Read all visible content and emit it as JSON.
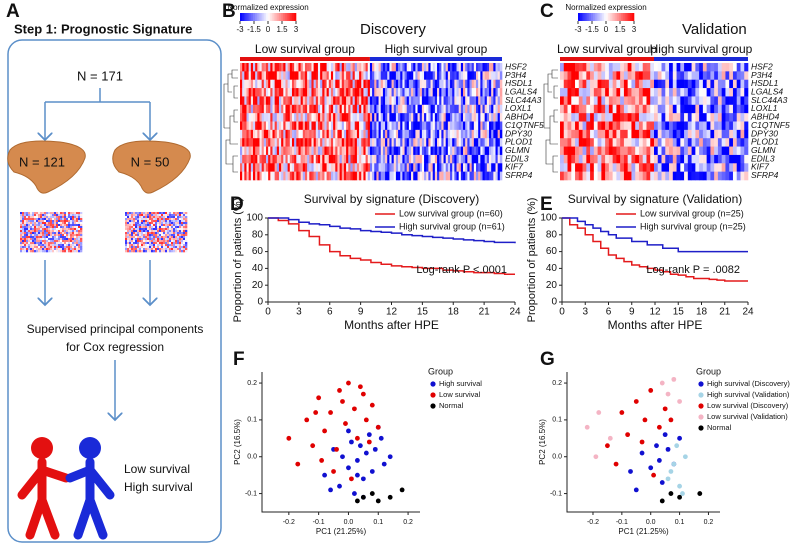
{
  "panels": {
    "A": {
      "label": "A",
      "title": "Step 1: Prognostic Signature",
      "total": "N = 171",
      "groups": [
        "N = 121",
        "N = 50"
      ],
      "method": [
        "Supervised principal components",
        "for Cox regression"
      ],
      "outcomes": [
        "Low survival",
        "High survival"
      ]
    },
    "B": {
      "label": "B",
      "title": "Discovery",
      "colorbar": {
        "label": "Normalized expression",
        "lim": [
          -3,
          3
        ],
        "ticks": [
          -3,
          -1.5,
          0,
          1.5,
          3
        ]
      },
      "groups": [
        "Low survival group",
        "High survival group"
      ],
      "genes": [
        "HSF2",
        "P3H4",
        "HSDL1",
        "LGALS4",
        "SLC44A3",
        "LOXL1",
        "ABHD4",
        "C1QTNF5",
        "DPY30",
        "PLOD1",
        "GLMN",
        "EDIL3",
        "KIF7",
        "SFRP4"
      ]
    },
    "C": {
      "label": "C",
      "title": "Validation",
      "colorbar": {
        "label": "Normalized expression",
        "lim": [
          -3,
          3
        ],
        "ticks": [
          -3,
          -1.5,
          0,
          1.5,
          3
        ]
      },
      "groups": [
        "Low survival group",
        "High survival group"
      ],
      "genes": [
        "HSF2",
        "P3H4",
        "HSDL1",
        "LGALS4",
        "SLC44A3",
        "LOXL1",
        "ABHD4",
        "C1QTNF5",
        "DPY30",
        "PLOD1",
        "GLMN",
        "EDIL3",
        "KIF7",
        "SFRP4"
      ]
    }
  },
  "chart_data": [
    {
      "label": "D",
      "type": "step",
      "title": "Survival by signature (Discovery)",
      "x_label": "Months after HPE",
      "y_label": "Proportion of patients (%)",
      "annotation": "Log-rank P <.0001",
      "x": [
        0,
        1,
        2,
        3,
        4,
        5,
        6,
        7,
        8,
        9,
        10,
        11,
        12,
        13,
        14,
        15,
        16,
        17,
        18,
        19,
        20,
        21,
        22,
        23,
        24
      ],
      "xlim": [
        0,
        24
      ],
      "xticks": [
        0,
        3,
        6,
        9,
        12,
        15,
        18,
        21,
        24
      ],
      "ylim": [
        0,
        100
      ],
      "yticks": [
        0,
        20,
        40,
        60,
        80,
        100
      ],
      "series": [
        {
          "name": "Low survival group (n=60)",
          "color": "#e41a1c",
          "values": [
            100,
            97,
            93,
            85,
            78,
            68,
            60,
            55,
            52,
            50,
            47,
            45,
            43,
            42,
            41,
            40,
            40,
            38,
            37,
            36,
            35,
            35,
            34,
            33,
            33
          ]
        },
        {
          "name": "High survival group (n=61)",
          "color": "#1f1fc8",
          "values": [
            100,
            100,
            98,
            95,
            93,
            92,
            90,
            88,
            87,
            85,
            84,
            83,
            82,
            80,
            79,
            78,
            77,
            76,
            75,
            74,
            73,
            72,
            71,
            71,
            70
          ]
        }
      ]
    },
    {
      "label": "E",
      "type": "step",
      "title": "Survival by signature (Validation)",
      "x_label": "Months after HPE",
      "y_label": "Proportion of patients (%)",
      "annotation": "Log-rank P = .0082",
      "x": [
        0,
        1,
        2,
        3,
        4,
        5,
        6,
        7,
        8,
        9,
        10,
        11,
        12,
        13,
        14,
        15,
        16,
        17,
        18,
        19,
        20,
        21,
        22,
        23,
        24
      ],
      "xlim": [
        0,
        24
      ],
      "xticks": [
        0,
        3,
        6,
        9,
        12,
        15,
        18,
        21,
        24
      ],
      "ylim": [
        0,
        100
      ],
      "yticks": [
        0,
        20,
        40,
        60,
        80,
        100
      ],
      "series": [
        {
          "name": "Low survival group (n=25)",
          "color": "#e41a1c",
          "values": [
            100,
            92,
            88,
            80,
            72,
            64,
            56,
            52,
            48,
            44,
            42,
            40,
            38,
            36,
            33,
            32,
            30,
            28,
            28,
            27,
            26,
            25,
            25,
            25,
            25
          ]
        },
        {
          "name": "High survival group (n=25)",
          "color": "#1f1fc8",
          "values": [
            100,
            100,
            96,
            92,
            88,
            84,
            80,
            76,
            76,
            72,
            72,
            68,
            68,
            64,
            64,
            60,
            60,
            60,
            60,
            60,
            60,
            60,
            60,
            60,
            60
          ]
        }
      ]
    },
    {
      "label": "F",
      "type": "scatter",
      "x_label": "PC1 (21.25%)",
      "y_label": "PC2 (16.5%)",
      "legend_title": "Group",
      "xlim": [
        -0.29,
        0.24
      ],
      "ylim": [
        -0.15,
        0.23
      ],
      "xticks": [
        -0.2,
        -0.1,
        {
          "value": 0,
          "label": "0.0"
        },
        0.1,
        0.2
      ],
      "yticks": [
        -0.1,
        {
          "value": 0,
          "label": "0.0"
        },
        0.1,
        0.2
      ],
      "series": [
        {
          "name": "High survival",
          "color": "#1010d0",
          "x": [
            -0.08,
            -0.05,
            -0.03,
            -0.02,
            0,
            0.01,
            0.02,
            0.03,
            0.04,
            0.05,
            0.06,
            0.07,
            0.08,
            0.09,
            0.1,
            0.12,
            0.14,
            -0.06,
            0.03,
            0.0,
            0.05,
            0.11
          ],
          "values": [
            -0.05,
            0.02,
            -0.08,
            0.0,
            -0.03,
            0.04,
            -0.1,
            -0.01,
            0.03,
            -0.06,
            0.01,
            0.06,
            -0.04,
            0.02,
            0.08,
            -0.02,
            0.0,
            -0.09,
            -0.05,
            0.07,
            -0.11,
            0.05
          ]
        },
        {
          "name": "Low survival",
          "color": "#e00000",
          "x": [
            -0.2,
            -0.17,
            -0.14,
            -0.12,
            -0.1,
            -0.08,
            -0.06,
            -0.05,
            -0.03,
            -0.01,
            0.0,
            0.02,
            0.03,
            0.05,
            0.06,
            0.08,
            0.1,
            -0.09,
            -0.04,
            0.01,
            0.04,
            -0.11,
            0.07,
            -0.02
          ],
          "values": [
            0.05,
            -0.02,
            0.1,
            0.03,
            0.16,
            0.07,
            0.12,
            -0.04,
            0.18,
            0.09,
            0.2,
            0.13,
            0.05,
            0.17,
            0.1,
            0.14,
            0.08,
            -0.01,
            0.02,
            -0.06,
            0.19,
            0.12,
            0.04,
            0.15
          ]
        },
        {
          "name": "Normal",
          "color": "#000000",
          "x": [
            0.03,
            0.05,
            0.08,
            0.1,
            0.14,
            0.18
          ],
          "values": [
            -0.12,
            -0.11,
            -0.1,
            -0.12,
            -0.11,
            -0.09
          ]
        }
      ]
    },
    {
      "label": "G",
      "type": "scatter",
      "x_label": "PC1 (21.25%)",
      "y_label": "PC2 (16.5%)",
      "legend_title": "Group",
      "xlim": [
        -0.29,
        0.24
      ],
      "ylim": [
        -0.15,
        0.23
      ],
      "xticks": [
        -0.2,
        -0.1,
        {
          "value": 0,
          "label": "0.0"
        },
        0.1,
        0.2
      ],
      "yticks": [
        -0.1,
        {
          "value": 0,
          "label": "0.0"
        },
        0.1,
        0.2
      ],
      "series": [
        {
          "name": "High survival (Discovery)",
          "color": "#1010d0",
          "x": [
            -0.07,
            -0.03,
            0,
            0.02,
            0.04,
            0.06,
            0.08,
            0.1,
            -0.05,
            0.03,
            0.05
          ],
          "values": [
            -0.04,
            0.01,
            -0.03,
            0.03,
            -0.07,
            0.02,
            -0.02,
            0.05,
            -0.09,
            -0.01,
            0.06
          ]
        },
        {
          "name": "High survival (Validation)",
          "color": "#a6d4e6",
          "x": [
            0.06,
            0.08,
            0.1,
            0.12,
            0.09,
            0.11,
            0.07
          ],
          "values": [
            -0.06,
            -0.02,
            -0.08,
            0.0,
            0.03,
            -0.1,
            -0.04
          ]
        },
        {
          "name": "Low survival (Discovery)",
          "color": "#e00000",
          "x": [
            -0.15,
            -0.1,
            -0.08,
            -0.05,
            -0.02,
            0,
            0.03,
            0.05,
            -0.12,
            -0.03,
            0.01,
            0.07
          ],
          "values": [
            0.03,
            0.12,
            0.06,
            0.15,
            0.1,
            0.18,
            0.08,
            0.13,
            -0.02,
            0.04,
            -0.05,
            0.1
          ]
        },
        {
          "name": "Low survival (Validation)",
          "color": "#f4b4c4",
          "x": [
            -0.22,
            -0.18,
            -0.14,
            0.04,
            0.06,
            0.08,
            -0.19,
            0.1
          ],
          "values": [
            0.08,
            0.12,
            0.05,
            0.2,
            0.17,
            0.21,
            0.0,
            0.15
          ]
        },
        {
          "name": "Normal",
          "color": "#000000",
          "x": [
            0.04,
            0.07,
            0.1,
            0.17
          ],
          "values": [
            -0.12,
            -0.1,
            -0.11,
            -0.1
          ]
        }
      ]
    }
  ]
}
